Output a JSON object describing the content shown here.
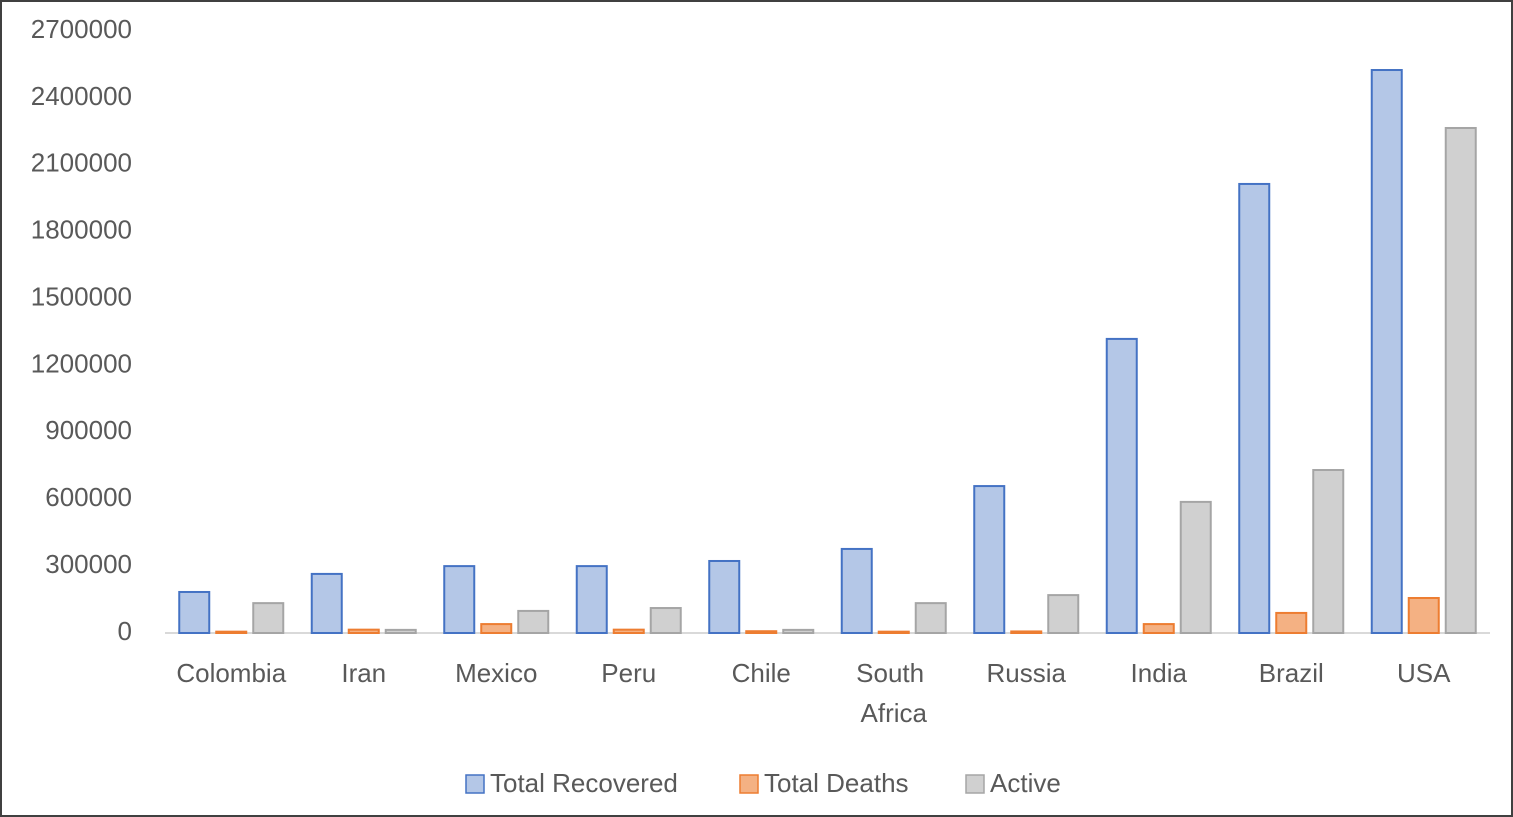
{
  "chart_data": {
    "type": "bar",
    "categories": [
      "Colombia",
      "Iran",
      "Mexico",
      "Peru",
      "Chile",
      "South Africa",
      "Russia",
      "India",
      "Brazil",
      "USA"
    ],
    "series": [
      {
        "name": "Total Recovered",
        "color": "#b4c7e7",
        "values": [
          184000,
          265000,
          300000,
          300000,
          323000,
          377000,
          659000,
          1319000,
          2014000,
          2525000
        ]
      },
      {
        "name": "Total Deaths",
        "color": "#f4b183",
        "values": [
          6000,
          15000,
          40000,
          15000,
          8000,
          6000,
          7000,
          40000,
          90000,
          157000
        ]
      },
      {
        "name": "Active",
        "color": "#d0d0d0",
        "values": [
          134000,
          14000,
          99000,
          112000,
          14000,
          134000,
          170000,
          588000,
          731000,
          2265000
        ]
      }
    ],
    "ylim": [
      0,
      2700000
    ],
    "yticks": [
      0,
      300000,
      600000,
      900000,
      1200000,
      1500000,
      1800000,
      2100000,
      2400000,
      2700000
    ],
    "legend": "bottom"
  }
}
